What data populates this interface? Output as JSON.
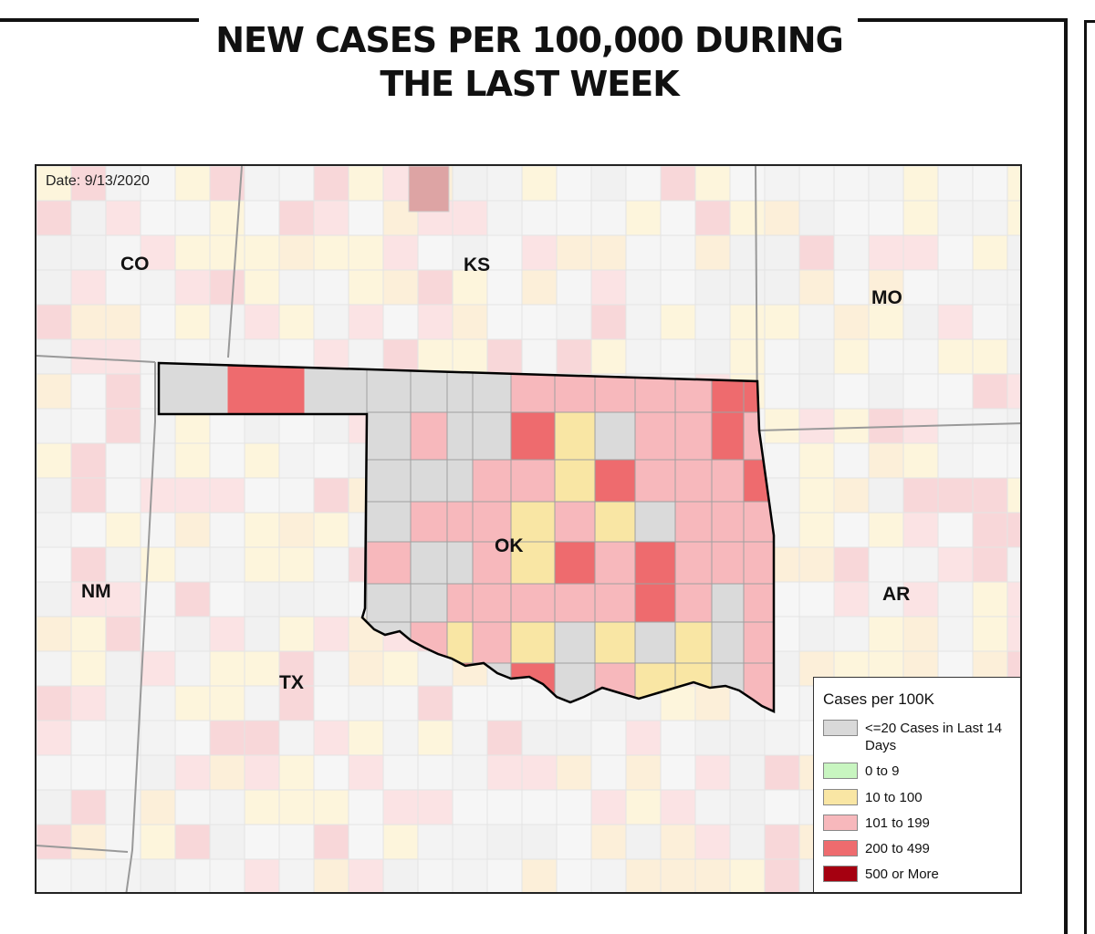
{
  "title": {
    "line1": "NEW CASES PER 100,000 DURING",
    "line2": "THE LAST WEEK"
  },
  "map": {
    "date_label": "Date: 9/13/2020",
    "state_labels": {
      "co": "CO",
      "ks": "KS",
      "mo": "MO",
      "nm": "NM",
      "ok": "OK",
      "ar": "AR",
      "tx": "TX"
    }
  },
  "legend": {
    "title": "Cases per 100K",
    "items": [
      {
        "label": "<=20 Cases in Last 14 Days",
        "color": "#d9d9d9"
      },
      {
        "label": "0 to 9",
        "color": "#c8f5c0"
      },
      {
        "label": "10  to 100",
        "color": "#f9e6a4"
      },
      {
        "label": "101 to 199",
        "color": "#f7b8bc"
      },
      {
        "label": "200 to 499",
        "color": "#ee6b6e"
      },
      {
        "label": "500 or More",
        "color": "#a50010"
      }
    ]
  }
}
